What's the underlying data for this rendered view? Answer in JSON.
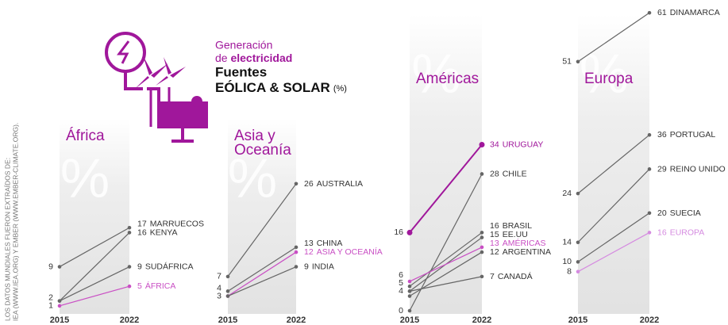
{
  "header": {
    "line1": "Generación",
    "line2a": "de ",
    "line2b": "electricidad",
    "line3": "Fuentes",
    "line4": "EÓLICA & SOLAR",
    "unit": "(%)",
    "watermark": "%"
  },
  "source": [
    "LOS DATOS MUNDIALES FUERON EXTRAÍDOS DE:",
    "IEA (WWW.IEA.ORG) Y EMBER (WWW.EMBER-CLIMATE.ORG)."
  ],
  "chart_data": [
    {
      "type": "slope",
      "title": [
        "África"
      ],
      "x": [
        2015,
        2022
      ],
      "ylim": [
        0,
        62
      ],
      "series": [
        {
          "name": "MARRUECOS",
          "color": "#666666",
          "values": [
            9,
            17
          ],
          "show_start_label": true
        },
        {
          "name": "KENYA",
          "color": "#666666",
          "values": [
            2,
            16
          ],
          "show_start_label": true
        },
        {
          "name": "SUDÁFRICA",
          "color": "#666666",
          "values": [
            2,
            9
          ],
          "show_start_label": false
        },
        {
          "name": "ÁFRICA",
          "color": "#c94fc4",
          "values": [
            1,
            5
          ],
          "show_start_label": true
        }
      ]
    },
    {
      "type": "slope",
      "title": [
        "Asia y",
        "Oceanía"
      ],
      "x": [
        2015,
        2022
      ],
      "ylim": [
        0,
        62
      ],
      "series": [
        {
          "name": "AUSTRALIA",
          "color": "#666666",
          "values": [
            7,
            26
          ],
          "show_start_label": true
        },
        {
          "name": "CHINA",
          "color": "#666666",
          "values": [
            4,
            13
          ],
          "show_start_label": true
        },
        {
          "name": "ASIA Y OCEANÍA",
          "color": "#c94fc4",
          "values": [
            3,
            12
          ],
          "show_start_label": true
        },
        {
          "name": "INDIA",
          "color": "#666666",
          "values": [
            3,
            9
          ],
          "show_start_label": false
        }
      ]
    },
    {
      "type": "slope",
      "title": [
        "Américas"
      ],
      "x": [
        2015,
        2022
      ],
      "ylim": [
        0,
        62
      ],
      "series": [
        {
          "name": "URUGUAY",
          "color": "#a0179b",
          "values": [
            16,
            34
          ],
          "show_start_label": true,
          "bold": true
        },
        {
          "name": "CHILE",
          "color": "#666666",
          "values": [
            0,
            28
          ],
          "show_start_label": true
        },
        {
          "name": "BRASIL",
          "color": "#666666",
          "values": [
            5,
            16
          ],
          "show_start_label": true
        },
        {
          "name": "EE.UU",
          "color": "#666666",
          "values": [
            4,
            15
          ],
          "show_start_label": true
        },
        {
          "name": "AMÉRICAS",
          "color": "#c94fc4",
          "values": [
            6,
            13
          ],
          "show_start_label": true
        },
        {
          "name": "ARGENTINA",
          "color": "#666666",
          "values": [
            3,
            12
          ],
          "show_start_label": false
        },
        {
          "name": "CANADÁ",
          "color": "#666666",
          "values": [
            4,
            7
          ],
          "show_start_label": false
        }
      ]
    },
    {
      "type": "slope",
      "title": [
        "Europa"
      ],
      "x": [
        2015,
        2022
      ],
      "ylim": [
        0,
        62
      ],
      "series": [
        {
          "name": "DINAMARCA",
          "color": "#666666",
          "values": [
            51,
            61
          ],
          "show_start_label": true
        },
        {
          "name": "PORTUGAL",
          "color": "#666666",
          "values": [
            24,
            36
          ],
          "show_start_label": true
        },
        {
          "name": "REINO UNIDO",
          "color": "#666666",
          "values": [
            14,
            29
          ],
          "show_start_label": true
        },
        {
          "name": "SUECIA",
          "color": "#666666",
          "values": [
            10,
            20
          ],
          "show_start_label": true
        },
        {
          "name": "EUROPA",
          "color": "#d58be0",
          "values": [
            8,
            16
          ],
          "show_start_label": true
        }
      ]
    }
  ]
}
